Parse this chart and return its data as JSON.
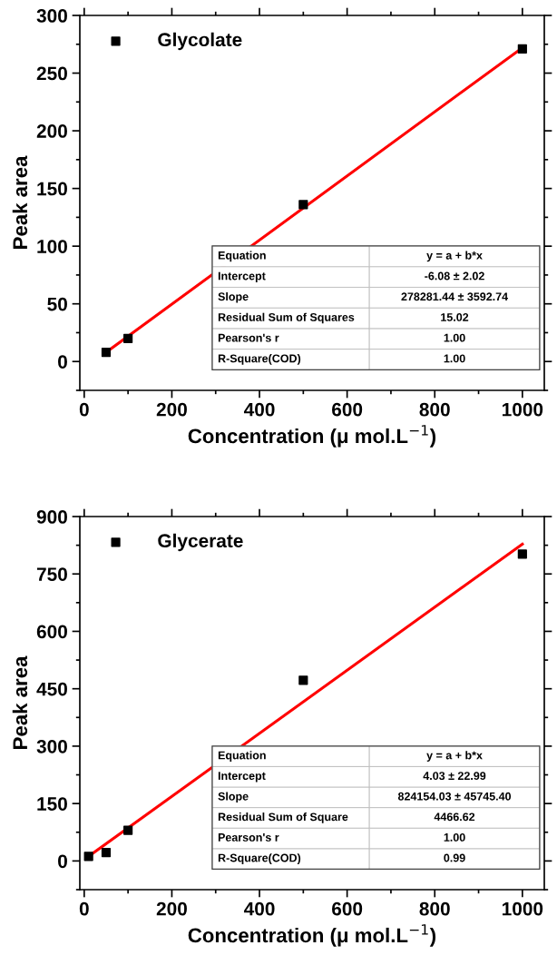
{
  "chart_data": [
    {
      "type": "scatter",
      "xlabel": "Concentration (μ mol.L$^{−1}$)",
      "ylabel": "Peak area",
      "xlim": [
        -10,
        1050
      ],
      "ylim": [
        -25,
        300
      ],
      "xticks": [
        0,
        200,
        400,
        600,
        800,
        1000
      ],
      "yticks": [
        0,
        50,
        100,
        150,
        200,
        250,
        300
      ],
      "legend": "top left",
      "grid": false,
      "series": [
        {
          "name": "Glycolate",
          "color": "#000000",
          "marker": "square",
          "x": [
            50,
            100,
            500,
            1000
          ],
          "values": [
            8,
            20,
            136,
            271
          ]
        },
        {
          "type": "line",
          "color": "#ff0000",
          "marker": "none",
          "x": [
            50,
            1000
          ],
          "values": [
            8,
            272
          ]
        }
      ],
      "annotations": [
        "Equation",
        "y = a + b*x",
        "Intercept",
        "-6.08 ± 2.02",
        "Slope",
        "278281.44 ± 3592.74",
        "Residual Sum of Squares",
        "15.02",
        "Pearson's r",
        "1.00",
        "R-Square(COD)",
        "1.00"
      ]
    },
    {
      "type": "scatter",
      "xlabel": "Concentration (μ mol.L$^{−1}$)",
      "ylabel": "Peak area",
      "xlim": [
        -10,
        1050
      ],
      "ylim": [
        -75,
        900
      ],
      "xticks": [
        0,
        200,
        400,
        600,
        800,
        1000
      ],
      "yticks": [
        0,
        150,
        300,
        450,
        600,
        750,
        900
      ],
      "legend": "top left",
      "grid": false,
      "series": [
        {
          "name": "Glycerate",
          "color": "#000000",
          "marker": "square",
          "x": [
            10,
            50,
            100,
            500,
            1000
          ],
          "values": [
            12,
            22,
            80,
            472,
            802
          ]
        },
        {
          "type": "line",
          "color": "#ff0000",
          "marker": "none",
          "x": [
            10,
            1000
          ],
          "values": [
            12,
            828
          ]
        }
      ],
      "annotations": [
        "Equation",
        "y = a + b*x",
        "Intercept",
        "4.03 ± 22.99",
        "Slope",
        "824154.03 ± 45745.40",
        "Residual Sum of Square",
        "4466.62",
        "Pearson's r",
        "1.00",
        "R-Square(COD)",
        "0.99"
      ]
    }
  ]
}
